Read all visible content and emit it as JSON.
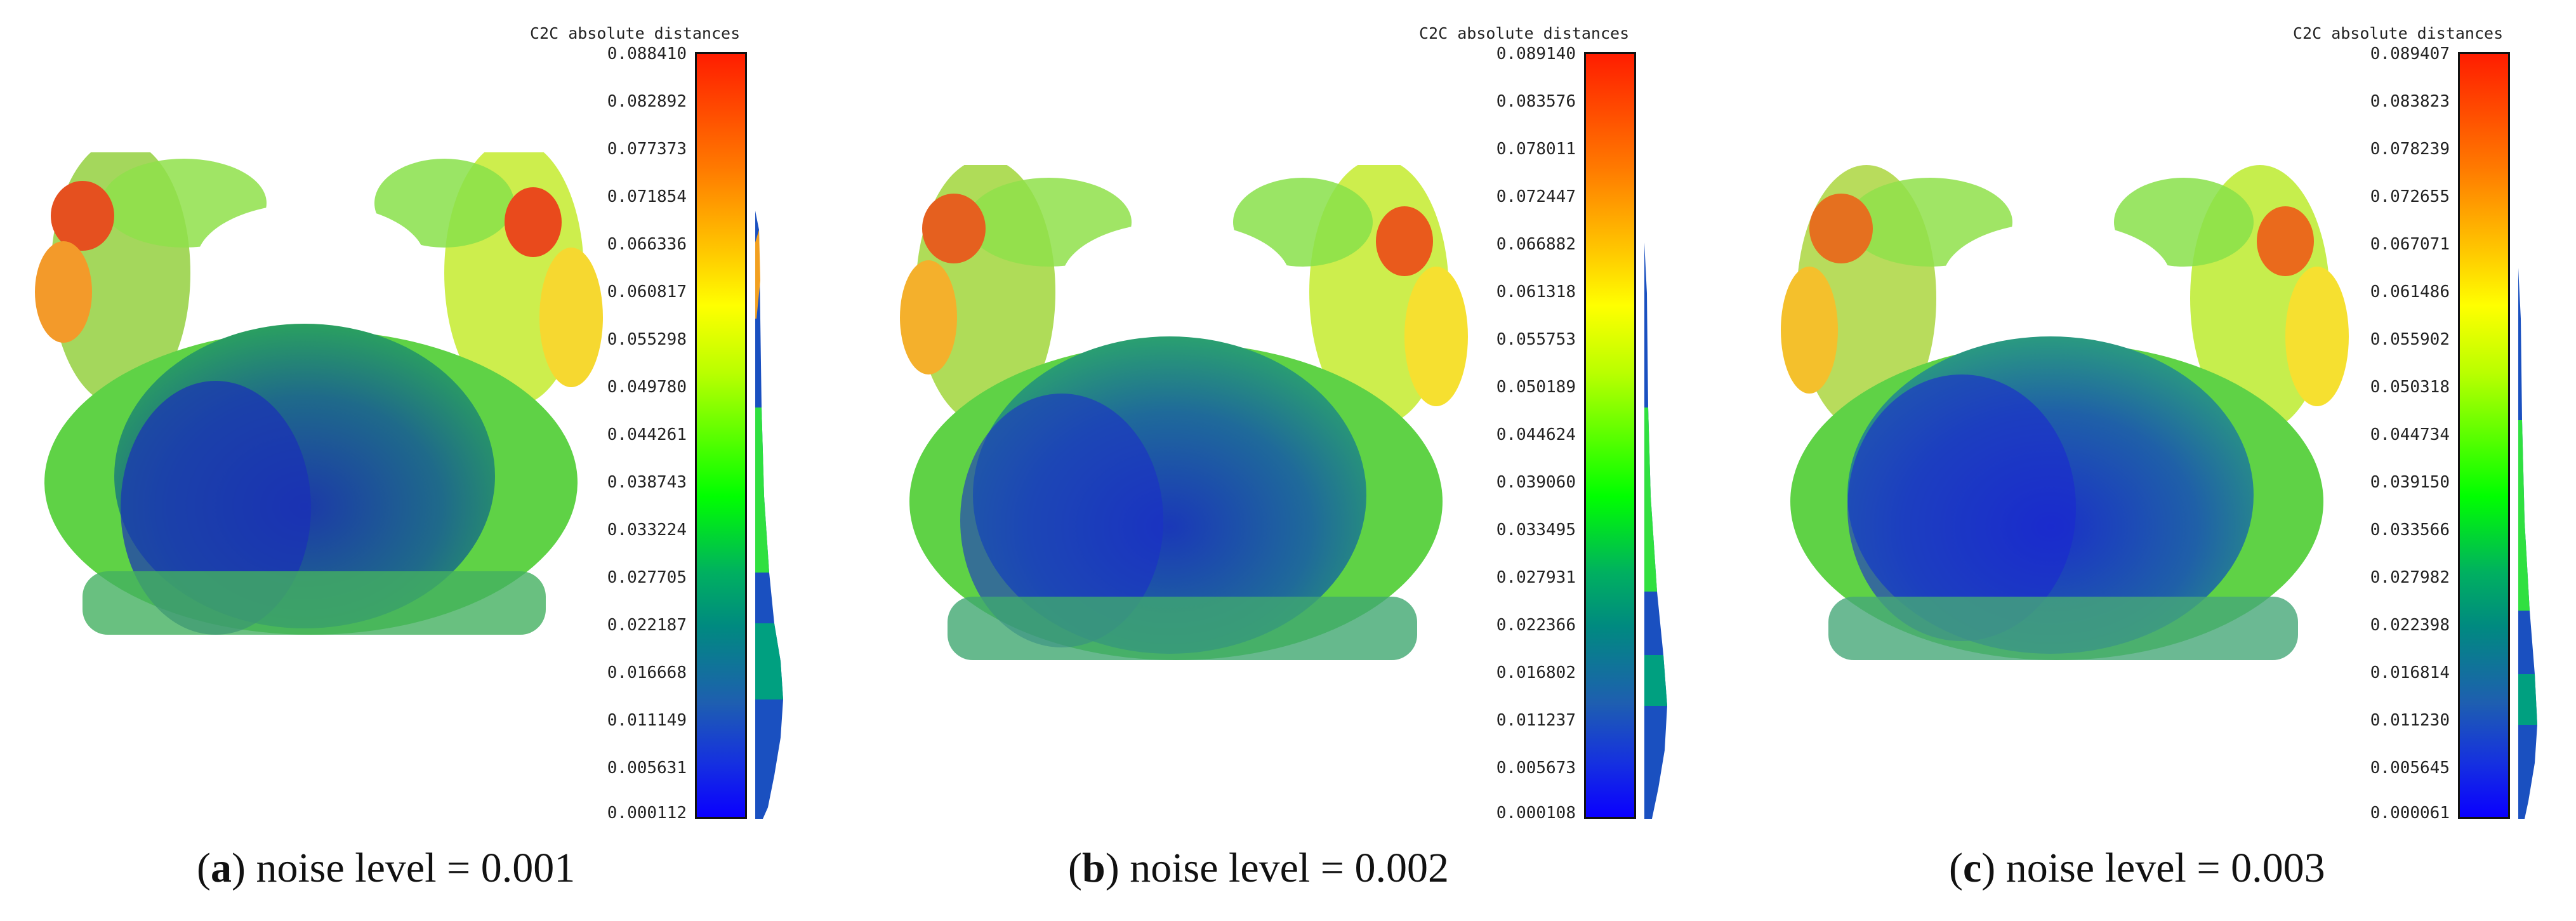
{
  "panels": [
    {
      "id": "a",
      "title": "C2C absolute distances",
      "ticks": [
        "0.088410",
        "0.082892",
        "0.077373",
        "0.071854",
        "0.066336",
        "0.060817",
        "0.055298",
        "0.049780",
        "0.044261",
        "0.038743",
        "0.033224",
        "0.027705",
        "0.022187",
        "0.016668",
        "0.011149",
        "0.005631",
        "0.000112"
      ],
      "caption_letter": "a",
      "caption_text": "noise level = 0.001"
    },
    {
      "id": "b",
      "title": "C2C absolute distances",
      "ticks": [
        "0.089140",
        "0.083576",
        "0.078011",
        "0.072447",
        "0.066882",
        "0.061318",
        "0.055753",
        "0.050189",
        "0.044624",
        "0.039060",
        "0.033495",
        "0.027931",
        "0.022366",
        "0.016802",
        "0.011237",
        "0.005673",
        "0.000108"
      ],
      "caption_letter": "b",
      "caption_text": "noise level = 0.002"
    },
    {
      "id": "c",
      "title": "C2C absolute distances",
      "ticks": [
        "0.089407",
        "0.083823",
        "0.078239",
        "0.072655",
        "0.067071",
        "0.061486",
        "0.055902",
        "0.050318",
        "0.044734",
        "0.039150",
        "0.033566",
        "0.027982",
        "0.022398",
        "0.016814",
        "0.011230",
        "0.005645",
        "0.000061"
      ],
      "caption_letter": "c",
      "caption_text": "noise level = 0.003"
    }
  ],
  "colors": {
    "red": "#ff2000",
    "orange": "#ff8a00",
    "yellow": "#ffff00",
    "green": "#30ff00",
    "teal": "#00a080",
    "blue": "#1030d0"
  }
}
